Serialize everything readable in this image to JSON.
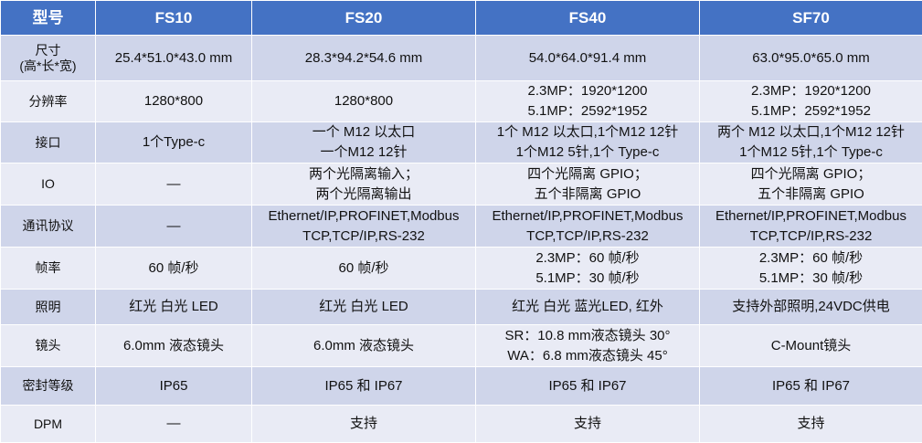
{
  "table": {
    "header": [
      "型号",
      "FS10",
      "FS20",
      "FS40",
      "SF70"
    ],
    "rows": [
      {
        "label": [
          "尺寸",
          "(高*长*宽)"
        ],
        "cells": [
          [
            "25.4*51.0*43.0 mm"
          ],
          [
            "28.3*94.2*54.6 mm"
          ],
          [
            "54.0*64.0*91.4 mm"
          ],
          [
            "63.0*95.0*65.0 mm"
          ]
        ]
      },
      {
        "label": [
          "分辨率"
        ],
        "cells": [
          [
            "1280*800"
          ],
          [
            "1280*800"
          ],
          [
            "2.3MP：1920*1200",
            "5.1MP：2592*1952"
          ],
          [
            "2.3MP：1920*1200",
            "5.1MP：2592*1952"
          ]
        ]
      },
      {
        "label": [
          "接口"
        ],
        "cells": [
          [
            "1个Type-c"
          ],
          [
            "一个 M12 以太口",
            "一个M12 12针"
          ],
          [
            "1个 M12 以太口,1个M12 12针",
            "1个M12 5针,1个 Type-c"
          ],
          [
            "两个 M12 以太口,1个M12 12针",
            "1个M12 5针,1个 Type-c"
          ]
        ]
      },
      {
        "label": [
          "IO"
        ],
        "cells": [
          [
            "—"
          ],
          [
            "两个光隔离输入；",
            "两个光隔离输出"
          ],
          [
            "四个光隔离 GPIO；",
            "五个非隔离 GPIO"
          ],
          [
            "四个光隔离 GPIO；",
            "五个非隔离 GPIO"
          ]
        ]
      },
      {
        "label": [
          "通讯协议"
        ],
        "cells": [
          [
            "—"
          ],
          [
            "Ethernet/IP,PROFINET,Modbus",
            "TCP,TCP/IP,RS-232"
          ],
          [
            "Ethernet/IP,PROFINET,Modbus",
            "TCP,TCP/IP,RS-232"
          ],
          [
            "Ethernet/IP,PROFINET,Modbus",
            "TCP,TCP/IP,RS-232"
          ]
        ]
      },
      {
        "label": [
          "帧率"
        ],
        "cells": [
          [
            "60 帧/秒"
          ],
          [
            "60 帧/秒"
          ],
          [
            "2.3MP：60 帧/秒",
            "5.1MP：30 帧/秒"
          ],
          [
            "2.3MP：60 帧/秒",
            "5.1MP：30 帧/秒"
          ]
        ]
      },
      {
        "label": [
          "照明"
        ],
        "cells": [
          [
            "红光 白光 LED"
          ],
          [
            "红光 白光 LED"
          ],
          [
            "红光 白光 蓝光LED, 红外"
          ],
          [
            "支持外部照明,24VDC供电"
          ]
        ]
      },
      {
        "label": [
          "镜头"
        ],
        "cells": [
          [
            "6.0mm 液态镜头"
          ],
          [
            "6.0mm 液态镜头"
          ],
          [
            "SR：10.8 mm液态镜头 30°",
            "WA：6.8 mm液态镜头 45°"
          ],
          [
            "C-Mount镜头"
          ]
        ]
      },
      {
        "label": [
          "密封等级"
        ],
        "cells": [
          [
            "IP65"
          ],
          [
            "IP65 和 IP67"
          ],
          [
            "IP65 和 IP67"
          ],
          [
            "IP65 和 IP67"
          ]
        ]
      },
      {
        "label": [
          "DPM"
        ],
        "cells": [
          [
            "—"
          ],
          [
            "支持"
          ],
          [
            "支持"
          ],
          [
            "支持"
          ]
        ]
      }
    ]
  }
}
